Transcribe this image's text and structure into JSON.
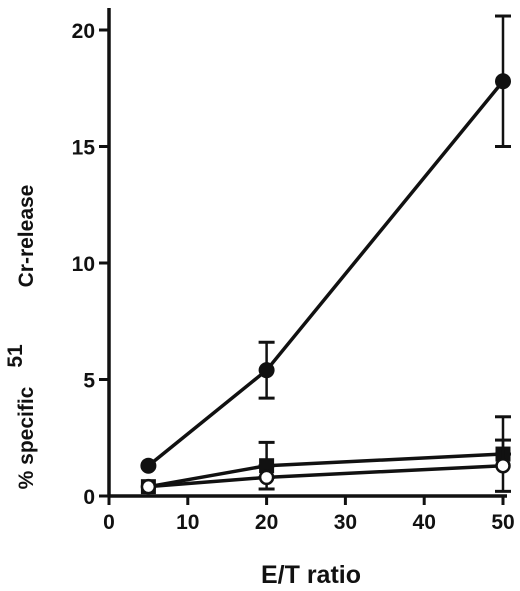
{
  "chart_data": {
    "type": "line",
    "title": "",
    "xlabel": "E/T ratio",
    "ylabel_parts": [
      "% specific",
      "51",
      "Cr-release"
    ],
    "xlim": [
      0,
      50
    ],
    "ylim": [
      0,
      20
    ],
    "xticks": [
      0,
      10,
      20,
      30,
      40,
      50
    ],
    "yticks": [
      0,
      5,
      10,
      15,
      20
    ],
    "grid": false,
    "legend": "none",
    "x": [
      5,
      20,
      50
    ],
    "series": [
      {
        "marker": "filled-circle",
        "values": [
          1.3,
          5.4,
          17.8
        ],
        "error_low": [
          1.3,
          4.2,
          15.0
        ],
        "error_high": [
          1.3,
          6.6,
          20.6
        ]
      },
      {
        "marker": "filled-square",
        "values": [
          0.4,
          1.3,
          1.8
        ],
        "error_low": [
          0.4,
          1.3,
          1.8
        ],
        "error_high": [
          0.4,
          2.3,
          2.4
        ]
      },
      {
        "marker": "open-circle",
        "values": [
          0.4,
          0.8,
          1.3
        ],
        "error_low": [
          0.4,
          0.3,
          0.2
        ],
        "error_high": [
          0.4,
          0.8,
          3.4
        ]
      }
    ]
  }
}
